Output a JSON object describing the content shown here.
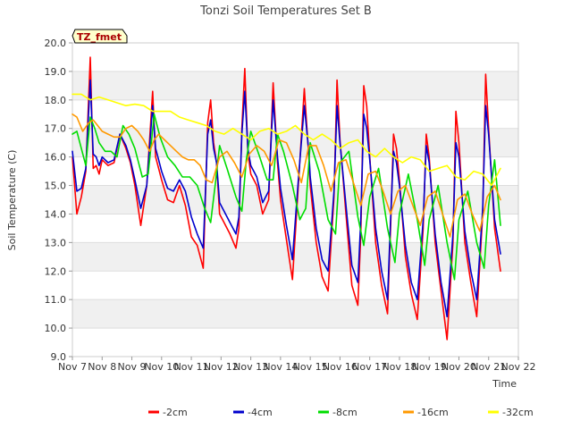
{
  "chart_data": {
    "type": "line",
    "title": "Tonzi Soil Temperatures Set B",
    "xlabel": "Time",
    "ylabel": "Soil Temperature (C)",
    "xlim": [
      7,
      22
    ],
    "ylim": [
      9.0,
      20.0
    ],
    "x_tick_labels": [
      "Nov 7",
      "Nov 8",
      "Nov 9",
      "Nov 10",
      "Nov 11",
      "Nov 12",
      "Nov 13",
      "Nov 14",
      "Nov 15",
      "Nov 16",
      "Nov 17",
      "Nov 18",
      "Nov 19",
      "Nov 20",
      "Nov 21",
      "Nov 22"
    ],
    "y_ticks": [
      9.0,
      10.0,
      11.0,
      12.0,
      13.0,
      14.0,
      15.0,
      16.0,
      17.0,
      18.0,
      19.0,
      20.0
    ],
    "grid": "horizontal alternating bands",
    "legend_position": "bottom",
    "annotation": "TZ_fmet",
    "series": [
      {
        "name": "-2cm",
        "color": "#ff0000",
        "x": [
          7.0,
          7.15,
          7.3,
          7.45,
          7.6,
          7.7,
          7.8,
          7.9,
          8.0,
          8.2,
          8.4,
          8.6,
          8.8,
          8.95,
          9.1,
          9.3,
          9.5,
          9.7,
          9.8,
          9.9,
          10.0,
          10.2,
          10.4,
          10.6,
          10.8,
          11.0,
          11.2,
          11.4,
          11.55,
          11.65,
          11.75,
          11.85,
          11.95,
          12.1,
          12.3,
          12.5,
          12.6,
          12.7,
          12.8,
          12.9,
          13.0,
          13.2,
          13.4,
          13.6,
          13.75,
          13.9,
          14.0,
          14.2,
          14.4,
          14.6,
          14.8,
          14.95,
          15.0,
          15.2,
          15.4,
          15.6,
          15.8,
          15.9,
          16.0,
          16.2,
          16.4,
          16.6,
          16.7,
          16.8,
          16.9,
          17.0,
          17.2,
          17.4,
          17.6,
          17.7,
          17.8,
          17.9,
          18.0,
          18.2,
          18.4,
          18.6,
          18.8,
          18.9,
          19.0,
          19.2,
          19.4,
          19.6,
          19.8,
          19.9,
          20.0,
          20.2,
          20.4,
          20.6,
          20.8,
          20.9,
          21.0,
          21.2,
          21.4
        ],
        "values": [
          16.0,
          14.0,
          14.6,
          15.5,
          19.5,
          15.6,
          15.7,
          15.4,
          15.9,
          15.7,
          15.8,
          16.8,
          16.3,
          15.8,
          15.0,
          13.6,
          15.0,
          18.3,
          16.0,
          15.6,
          15.2,
          14.5,
          14.4,
          15.0,
          14.3,
          13.2,
          12.9,
          12.1,
          17.2,
          18.0,
          16.5,
          15.8,
          14.0,
          13.7,
          13.3,
          12.8,
          13.5,
          17.0,
          19.1,
          16.2,
          15.4,
          15.0,
          14.0,
          14.5,
          18.6,
          15.8,
          14.5,
          13.1,
          11.7,
          15.0,
          18.4,
          16.0,
          15.0,
          13.0,
          11.8,
          11.3,
          14.6,
          18.7,
          16.6,
          14.0,
          11.5,
          10.8,
          13.3,
          18.5,
          17.8,
          16.0,
          13.0,
          11.5,
          10.5,
          13.5,
          16.8,
          16.3,
          15.2,
          12.5,
          11.2,
          10.3,
          13.5,
          16.8,
          16.0,
          13.0,
          11.3,
          9.6,
          13.0,
          17.6,
          16.5,
          13.0,
          11.6,
          10.4,
          14.0,
          18.9,
          17.0,
          13.5,
          12.0
        ]
      },
      {
        "name": "-4cm",
        "color": "#0000cc",
        "x": [
          7.0,
          7.15,
          7.3,
          7.45,
          7.6,
          7.7,
          7.8,
          7.9,
          8.0,
          8.2,
          8.4,
          8.6,
          8.8,
          8.95,
          9.1,
          9.3,
          9.5,
          9.7,
          9.8,
          9.9,
          10.0,
          10.2,
          10.4,
          10.6,
          10.8,
          11.0,
          11.2,
          11.4,
          11.55,
          11.65,
          11.75,
          11.85,
          11.95,
          12.1,
          12.3,
          12.5,
          12.6,
          12.7,
          12.8,
          12.9,
          13.0,
          13.2,
          13.4,
          13.6,
          13.75,
          13.9,
          14.0,
          14.2,
          14.4,
          14.6,
          14.8,
          14.95,
          15.0,
          15.2,
          15.4,
          15.6,
          15.8,
          15.9,
          16.0,
          16.2,
          16.4,
          16.6,
          16.7,
          16.8,
          16.9,
          17.0,
          17.2,
          17.4,
          17.6,
          17.7,
          17.8,
          17.9,
          18.0,
          18.2,
          18.4,
          18.6,
          18.8,
          18.9,
          19.0,
          19.2,
          19.4,
          19.6,
          19.8,
          19.9,
          20.0,
          20.2,
          20.4,
          20.6,
          20.8,
          20.9,
          21.0,
          21.2,
          21.4
        ],
        "values": [
          16.2,
          14.8,
          14.9,
          15.6,
          18.7,
          16.1,
          16.0,
          15.7,
          16.0,
          15.8,
          15.9,
          16.8,
          16.4,
          15.9,
          15.2,
          14.2,
          15.0,
          17.8,
          16.3,
          15.9,
          15.5,
          14.9,
          14.8,
          15.2,
          14.8,
          13.9,
          13.3,
          12.8,
          16.8,
          17.3,
          16.3,
          15.8,
          14.4,
          14.1,
          13.7,
          13.3,
          13.9,
          16.8,
          18.3,
          16.3,
          15.7,
          15.3,
          14.4,
          14.8,
          18.0,
          16.0,
          14.9,
          13.6,
          12.4,
          15.2,
          17.8,
          16.2,
          15.3,
          13.5,
          12.4,
          12.0,
          14.8,
          17.8,
          16.5,
          14.3,
          12.2,
          11.6,
          13.8,
          17.5,
          17.0,
          15.9,
          13.5,
          12.0,
          11.0,
          13.8,
          16.2,
          15.8,
          15.0,
          12.9,
          11.6,
          11.0,
          13.8,
          16.4,
          15.8,
          13.3,
          11.6,
          10.4,
          13.3,
          16.5,
          16.0,
          13.4,
          12.0,
          11.0,
          14.2,
          17.8,
          16.8,
          13.8,
          12.6
        ]
      },
      {
        "name": "-8cm",
        "color": "#00dd00",
        "x": [
          7.0,
          7.15,
          7.3,
          7.45,
          7.6,
          7.75,
          7.9,
          8.1,
          8.3,
          8.5,
          8.7,
          8.9,
          9.1,
          9.35,
          9.55,
          9.75,
          9.95,
          10.2,
          10.45,
          10.7,
          10.95,
          11.2,
          11.45,
          11.65,
          11.8,
          11.95,
          12.2,
          12.5,
          12.7,
          12.85,
          13.0,
          13.3,
          13.55,
          13.75,
          13.9,
          14.1,
          14.4,
          14.65,
          14.85,
          15.0,
          15.3,
          15.6,
          15.85,
          16.0,
          16.3,
          16.6,
          16.8,
          17.0,
          17.3,
          17.6,
          17.85,
          18.0,
          18.3,
          18.6,
          18.85,
          19.0,
          19.3,
          19.6,
          19.85,
          20.0,
          20.3,
          20.6,
          20.85,
          21.0,
          21.2,
          21.4
        ],
        "values": [
          16.8,
          16.9,
          16.3,
          15.7,
          17.4,
          17.0,
          16.5,
          16.2,
          16.2,
          16.0,
          17.1,
          16.8,
          16.3,
          15.3,
          15.4,
          17.5,
          16.7,
          16.0,
          15.7,
          15.3,
          15.3,
          15.0,
          14.2,
          13.7,
          15.0,
          16.4,
          15.6,
          14.6,
          14.1,
          15.9,
          16.9,
          16.0,
          15.2,
          15.2,
          16.8,
          16.2,
          15.0,
          13.8,
          14.2,
          16.5,
          15.5,
          13.8,
          13.3,
          15.8,
          16.2,
          13.9,
          12.9,
          14.6,
          15.6,
          13.5,
          12.3,
          14.0,
          15.4,
          13.8,
          12.2,
          13.8,
          15.0,
          13.0,
          11.7,
          13.8,
          14.8,
          13.0,
          12.1,
          14.3,
          15.9,
          13.6
        ]
      },
      {
        "name": "-16cm",
        "color": "#ff9900",
        "x": [
          7.0,
          7.15,
          7.35,
          7.55,
          7.7,
          7.85,
          8.0,
          8.2,
          8.4,
          8.6,
          8.8,
          9.0,
          9.2,
          9.4,
          9.6,
          9.75,
          9.9,
          10.1,
          10.3,
          10.5,
          10.7,
          10.9,
          11.1,
          11.3,
          11.5,
          11.7,
          11.95,
          12.2,
          12.45,
          12.7,
          12.95,
          13.2,
          13.45,
          13.7,
          13.95,
          14.2,
          14.45,
          14.7,
          14.95,
          15.2,
          15.45,
          15.7,
          15.95,
          16.2,
          16.45,
          16.7,
          16.95,
          17.2,
          17.45,
          17.7,
          17.95,
          18.2,
          18.45,
          18.7,
          18.95,
          19.2,
          19.45,
          19.7,
          19.95,
          20.2,
          20.45,
          20.7,
          20.95,
          21.2,
          21.4
        ],
        "values": [
          17.5,
          17.4,
          16.9,
          17.2,
          17.3,
          17.1,
          16.9,
          16.8,
          16.7,
          16.7,
          17.0,
          17.1,
          16.9,
          16.6,
          16.2,
          16.6,
          16.8,
          16.6,
          16.4,
          16.2,
          16.0,
          15.9,
          15.9,
          15.7,
          15.2,
          15.1,
          16.0,
          16.2,
          15.8,
          15.3,
          16.1,
          16.4,
          16.2,
          15.7,
          16.6,
          16.5,
          15.9,
          15.1,
          16.4,
          16.4,
          15.7,
          14.8,
          15.8,
          15.9,
          15.1,
          14.3,
          15.4,
          15.5,
          14.8,
          14.0,
          14.8,
          15.0,
          14.3,
          13.6,
          14.6,
          14.8,
          14.0,
          13.2,
          14.5,
          14.7,
          14.0,
          13.4,
          14.6,
          15.0,
          14.5
        ]
      },
      {
        "name": "-32cm",
        "color": "#ffff00",
        "x": [
          7.0,
          7.3,
          7.6,
          7.9,
          8.2,
          8.5,
          8.8,
          9.1,
          9.4,
          9.7,
          10.0,
          10.3,
          10.6,
          10.9,
          11.2,
          11.5,
          11.8,
          12.1,
          12.4,
          12.7,
          13.0,
          13.3,
          13.6,
          13.9,
          14.2,
          14.5,
          14.8,
          15.1,
          15.4,
          15.7,
          16.0,
          16.3,
          16.6,
          16.9,
          17.2,
          17.5,
          17.8,
          18.1,
          18.4,
          18.7,
          19.0,
          19.3,
          19.6,
          19.9,
          20.2,
          20.5,
          20.8,
          21.1,
          21.4
        ],
        "values": [
          18.2,
          18.2,
          18.0,
          18.1,
          18.0,
          17.9,
          17.8,
          17.85,
          17.8,
          17.6,
          17.6,
          17.6,
          17.4,
          17.3,
          17.2,
          17.1,
          16.9,
          16.8,
          17.0,
          16.8,
          16.6,
          16.9,
          17.0,
          16.8,
          16.9,
          17.1,
          16.8,
          16.6,
          16.8,
          16.6,
          16.3,
          16.5,
          16.6,
          16.2,
          16.0,
          16.3,
          16.0,
          15.8,
          16.0,
          15.9,
          15.5,
          15.6,
          15.7,
          15.3,
          15.2,
          15.5,
          15.4,
          15.0,
          15.6
        ]
      }
    ]
  }
}
